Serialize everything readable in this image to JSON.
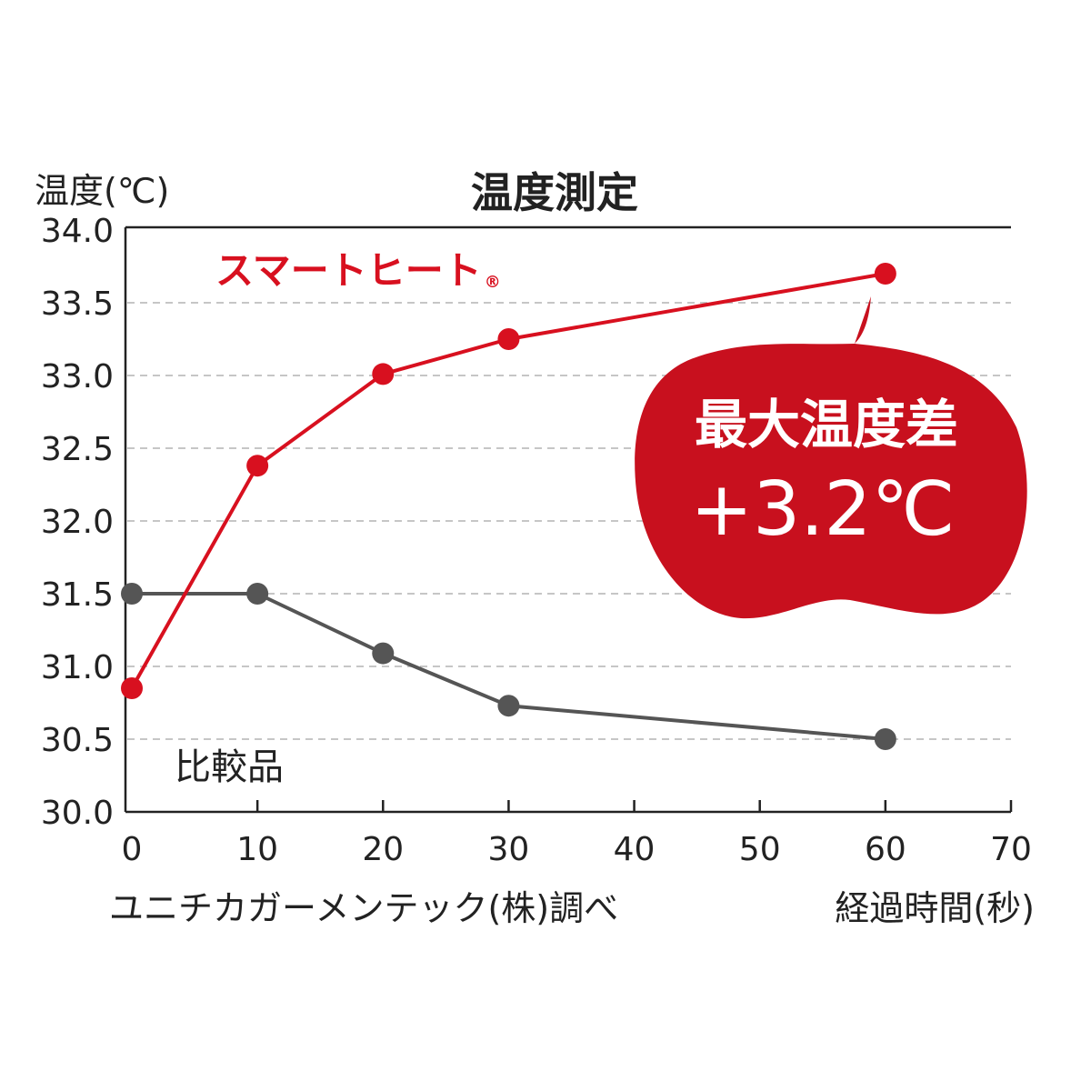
{
  "chart_data": {
    "type": "line",
    "title": "温度測定",
    "ylabel": "温度(℃)",
    "xlabel": "経過時間(秒)",
    "source": "ユニチカガーメンテック(株)調べ",
    "xlim": [
      0,
      70
    ],
    "ylim": [
      30.0,
      34.0
    ],
    "x_ticks": [
      "0",
      "10",
      "20",
      "30",
      "40",
      "50",
      "60",
      "70"
    ],
    "y_ticks": [
      "30.0",
      "30.5",
      "31.0",
      "31.5",
      "32.0",
      "32.5",
      "33.0",
      "33.5",
      "34.0"
    ],
    "grid": true,
    "series": [
      {
        "name": "スマートヒート",
        "name_mark": "®",
        "color": "#d8101f",
        "points": [
          {
            "x": 0,
            "y": 30.85
          },
          {
            "x": 10,
            "y": 32.38
          },
          {
            "x": 20,
            "y": 33.01
          },
          {
            "x": 30,
            "y": 33.25
          },
          {
            "x": 60,
            "y": 33.7
          }
        ]
      },
      {
        "name": "比較品",
        "color": "#555555",
        "points": [
          {
            "x": 0,
            "y": 31.5
          },
          {
            "x": 10,
            "y": 31.5
          },
          {
            "x": 20,
            "y": 31.09
          },
          {
            "x": 30,
            "y": 30.73
          },
          {
            "x": 60,
            "y": 30.5
          }
        ]
      }
    ],
    "annotation": {
      "line1": "最大温度差",
      "line2": "+3.2℃",
      "color": "#c8101e",
      "text_color": "#ffffff"
    }
  }
}
